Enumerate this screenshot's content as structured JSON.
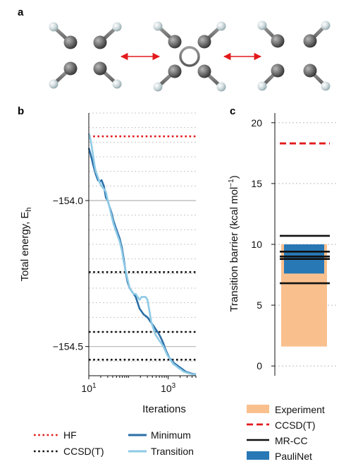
{
  "panel_labels": [
    "a",
    "b",
    "c"
  ],
  "chart_data": [
    {
      "panel": "a",
      "type": "diagram",
      "description_items": [
        "cyclobutadiene rectangular minimum",
        "square transition state",
        "rectangular minimum (rotated)"
      ],
      "arrow_color": "#e31a1c"
    },
    {
      "panel": "b",
      "type": "line",
      "xlabel": "Iterations",
      "ylabel": "Total energy, E",
      "ylabel_sub": "h",
      "xscale": "log",
      "xlim": [
        10,
        5000
      ],
      "ylim": [
        -154.6,
        -153.7
      ],
      "yticks": [
        -154.0,
        -154.5
      ],
      "ytick_labels": [
        "−154.0",
        "−154.5"
      ],
      "xticks": [
        10,
        1000
      ],
      "xtick_base": "10",
      "xtick_exps": [
        "1",
        "3"
      ],
      "hlines": [
        {
          "name": "HF",
          "y": -153.78,
          "color": "#e31a1c",
          "style": "dotted"
        },
        {
          "name": "CCSD(T)",
          "y": -154.245,
          "color": "#111111",
          "style": "dotted"
        },
        {
          "name": "CCSD(T)",
          "y": -154.45,
          "color": "#111111",
          "style": "dotted"
        },
        {
          "name": "CCSD(T)",
          "y": -154.545,
          "color": "#111111",
          "style": "dotted"
        }
      ],
      "series": [
        {
          "name": "Minimum",
          "color": "#2a6fa8",
          "x": [
            10,
            11,
            12,
            13,
            14,
            15,
            17,
            19,
            21,
            24,
            27,
            30,
            33,
            37,
            42,
            47,
            53,
            60,
            68,
            76,
            85,
            95,
            107,
            120,
            135,
            152,
            170,
            190,
            215,
            240,
            270,
            300,
            340,
            380,
            430,
            480,
            540,
            600,
            680,
            760,
            850,
            960,
            1080,
            1200,
            1350,
            1520,
            1700,
            1900,
            2150,
            2400,
            2700,
            3000,
            3400,
            3800,
            4300,
            5000
          ],
          "y": [
            -153.82,
            -153.84,
            -153.86,
            -153.88,
            -153.895,
            -153.91,
            -153.93,
            -153.935,
            -153.93,
            -153.95,
            -153.99,
            -154.0,
            -154.02,
            -154.04,
            -154.07,
            -154.09,
            -154.11,
            -154.13,
            -154.16,
            -154.2,
            -154.245,
            -154.28,
            -154.3,
            -154.31,
            -154.32,
            -154.33,
            -154.35,
            -154.37,
            -154.38,
            -154.39,
            -154.395,
            -154.4,
            -154.41,
            -154.42,
            -154.43,
            -154.44,
            -154.45,
            -154.46,
            -154.475,
            -154.49,
            -154.51,
            -154.525,
            -154.54,
            -154.545,
            -154.555,
            -154.56,
            -154.565,
            -154.57,
            -154.575,
            -154.58,
            -154.585,
            -154.588,
            -154.59,
            -154.592,
            -154.594,
            -154.595
          ]
        },
        {
          "name": "Transition",
          "color": "#8ecae6",
          "x": [
            10,
            11,
            12,
            13,
            14,
            15,
            17,
            19,
            21,
            24,
            27,
            30,
            33,
            37,
            42,
            47,
            53,
            60,
            68,
            76,
            85,
            95,
            107,
            120,
            135,
            152,
            170,
            190,
            215,
            240,
            270,
            300,
            340,
            380,
            430,
            480,
            540,
            600,
            680,
            760,
            850,
            960,
            1080,
            1200,
            1350,
            1520,
            1700,
            1900,
            2150,
            2400,
            2700,
            3000,
            3400,
            3800,
            4300,
            5000
          ],
          "y": [
            -153.77,
            -153.79,
            -153.82,
            -153.85,
            -153.88,
            -153.9,
            -153.92,
            -153.94,
            -153.95,
            -153.96,
            -153.97,
            -154.0,
            -154.02,
            -154.05,
            -154.08,
            -154.1,
            -154.12,
            -154.14,
            -154.17,
            -154.21,
            -154.24,
            -154.27,
            -154.3,
            -154.31,
            -154.32,
            -154.32,
            -154.33,
            -154.34,
            -154.33,
            -154.33,
            -154.33,
            -154.34,
            -154.38,
            -154.42,
            -154.44,
            -154.46,
            -154.47,
            -154.48,
            -154.49,
            -154.5,
            -154.515,
            -154.53,
            -154.54,
            -154.55,
            -154.56,
            -154.565,
            -154.57,
            -154.575,
            -154.58,
            -154.585,
            -154.588,
            -154.59,
            -154.592,
            -154.594,
            -154.595,
            -154.596
          ]
        }
      ],
      "legend": [
        {
          "label": "HF",
          "kind": "dotted",
          "color": "#e31a1c"
        },
        {
          "label": "CCSD(T)",
          "kind": "dotted",
          "color": "#111111"
        },
        {
          "label": "Minimum",
          "kind": "solid",
          "color": "#2a6fa8"
        },
        {
          "label": "Transition",
          "kind": "solid",
          "color": "#8ecae6"
        }
      ]
    },
    {
      "panel": "c",
      "type": "bar",
      "ylabel": "Transition barrier (kcal mol",
      "ylabel_sup": "−1",
      "ylabel_close": ")",
      "ylim": [
        -0.8,
        20.8
      ],
      "yticks": [
        0,
        5,
        10,
        15,
        20
      ],
      "ytick_labels": [
        "0",
        "5",
        "10",
        "15",
        "20"
      ],
      "experiment_range": [
        1.6,
        10.0
      ],
      "ccsdt": 18.3,
      "mrcc": [
        6.8,
        8.8,
        9.0,
        9.4,
        10.7
      ],
      "paulinet_range": [
        7.6,
        10.0
      ],
      "colors": {
        "experiment": "#f9c08e",
        "ccsdt": "#e31a1c",
        "mrcc": "#111111",
        "paulinet": "#2878b5"
      },
      "legend": [
        {
          "label": "Experiment",
          "kind": "patch",
          "color": "#f9c08e"
        },
        {
          "label": "CCSD(T)",
          "kind": "dashed",
          "color": "#e31a1c"
        },
        {
          "label": "MR-CC",
          "kind": "solid",
          "color": "#111111"
        },
        {
          "label": "PauliNet",
          "kind": "patch",
          "color": "#2878b5"
        }
      ]
    }
  ]
}
